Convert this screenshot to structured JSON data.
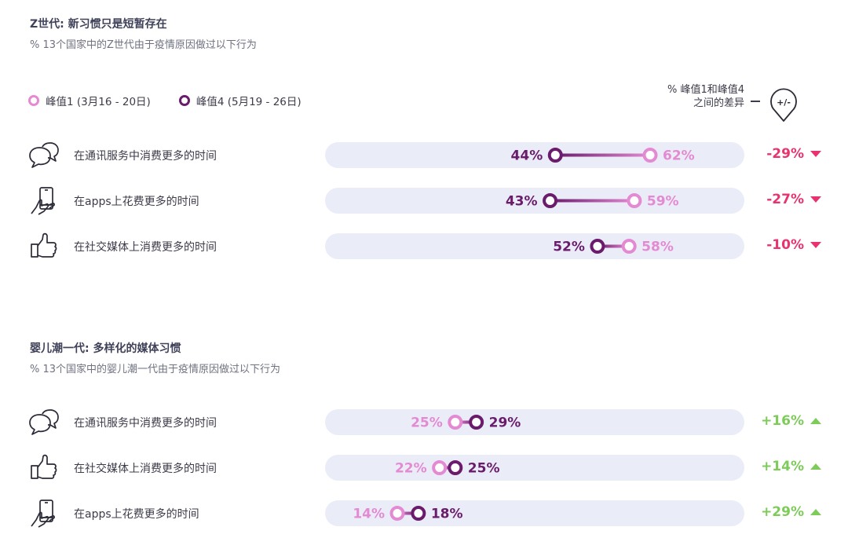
{
  "colors": {
    "peak1": "#e48ad2",
    "peak4": "#6a1b6b",
    "down": "#e8336e",
    "up": "#7dcc5a",
    "track": "#eaedf8"
  },
  "legend": {
    "peak1": "峰值1 (3月16 - 20日)",
    "peak4": "峰值4 (5月19 - 26日)",
    "diff_line1": "% 峰值1和峰值4",
    "diff_line2": "之间的差异",
    "diff_icon_text": "+/-"
  },
  "sections": [
    {
      "title": "Z世代: 新习惯只是短暂存在",
      "subtitle": "% 13个国家中的Z世代由于疫情原因做过以下行为",
      "rows": [
        {
          "icon": "chat-bubbles-icon",
          "label": "在通讯服务中消费更多的时间",
          "peak1": 62,
          "peak4": 44,
          "peak1_text": "62%",
          "peak4_text": "44%",
          "change": "-29%",
          "dir": "down"
        },
        {
          "icon": "phone-hand-icon",
          "label": "在apps上花费更多的时间",
          "peak1": 59,
          "peak4": 43,
          "peak1_text": "59%",
          "peak4_text": "43%",
          "change": "-27%",
          "dir": "down"
        },
        {
          "icon": "thumbs-up-icon",
          "label": "在社交媒体上消费更多的时间",
          "peak1": 58,
          "peak4": 52,
          "peak1_text": "58%",
          "peak4_text": "52%",
          "change": "-10%",
          "dir": "down"
        }
      ]
    },
    {
      "title": "婴儿潮一代: 多样化的媒体习惯",
      "subtitle": "% 13个国家中的婴儿潮一代由于疫情原因做过以下行为",
      "rows": [
        {
          "icon": "chat-bubbles-icon",
          "label": "在通讯服务中消费更多的时间",
          "peak1": 25,
          "peak4": 29,
          "peak1_text": "25%",
          "peak4_text": "29%",
          "change": "+16%",
          "dir": "up"
        },
        {
          "icon": "thumbs-up-icon",
          "label": "在社交媒体上消费更多的时间",
          "peak1": 22,
          "peak4": 25,
          "peak1_text": "22%",
          "peak4_text": "25%",
          "change": "+14%",
          "dir": "up"
        },
        {
          "icon": "phone-hand-icon",
          "label": "在apps上花费更多的时间",
          "peak1": 14,
          "peak4": 18,
          "peak1_text": "14%",
          "peak4_text": "18%",
          "change": "+29%",
          "dir": "up"
        }
      ]
    }
  ],
  "chart_data": [
    {
      "type": "dumbbell",
      "title": "Z世代: 新习惯只是短暂存在",
      "subtitle": "% 13个国家中的Z世代由于疫情原因做过以下行为",
      "categories": [
        "在通讯服务中消费更多的时间",
        "在apps上花费更多的时间",
        "在社交媒体上消费更多的时间"
      ],
      "series": [
        {
          "name": "峰值1 (3月16 - 20日)",
          "values": [
            62,
            59,
            58
          ]
        },
        {
          "name": "峰值4 (5月19 - 26日)",
          "values": [
            44,
            43,
            52
          ]
        }
      ],
      "change": [
        "-29%",
        "-27%",
        "-10%"
      ],
      "xlim": [
        0,
        100
      ]
    },
    {
      "type": "dumbbell",
      "title": "婴儿潮一代: 多样化的媒体习惯",
      "subtitle": "% 13个国家中的婴儿潮一代由于疫情原因做过以下行为",
      "categories": [
        "在通讯服务中消费更多的时间",
        "在社交媒体上消费更多的时间",
        "在apps上花费更多的时间"
      ],
      "series": [
        {
          "name": "峰值1 (3月16 - 20日)",
          "values": [
            25,
            22,
            14
          ]
        },
        {
          "name": "峰值4 (5月19 - 26日)",
          "values": [
            29,
            25,
            18
          ]
        }
      ],
      "change": [
        "+16%",
        "+14%",
        "+29%"
      ],
      "xlim": [
        0,
        100
      ]
    }
  ]
}
